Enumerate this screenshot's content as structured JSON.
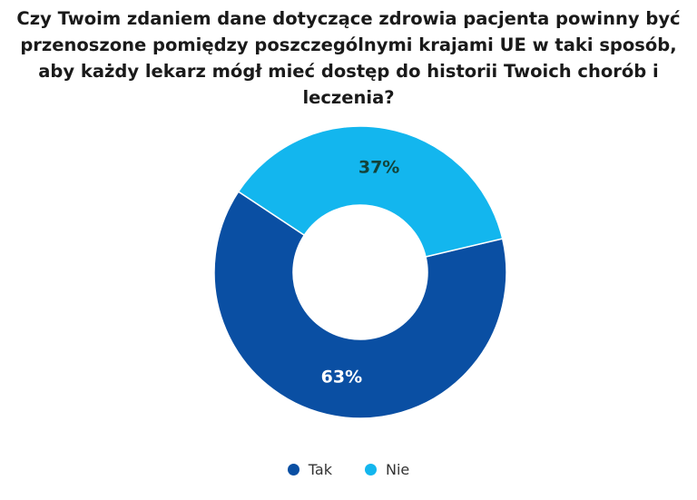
{
  "chart_data": {
    "type": "pie",
    "title_lines": [
      "Czy Twoim zdaniem dane dotyczące zdrowia pacjenta powinny być",
      "przenoszone pomiędzy poszczególnymi krajami UE w taki sposób,",
      "aby każdy lekarz mógł mieć dostęp do historii Twoich chorób i leczenia?"
    ],
    "donut": true,
    "categories": [
      "Tak",
      "Nie"
    ],
    "values": [
      63,
      37
    ],
    "data_labels": [
      "63%",
      "37%"
    ],
    "colors": [
      "#0a4fa3",
      "#13b6ee"
    ],
    "label_colors": [
      "#ffffff",
      "#13433a"
    ],
    "legend_position": "bottom"
  }
}
